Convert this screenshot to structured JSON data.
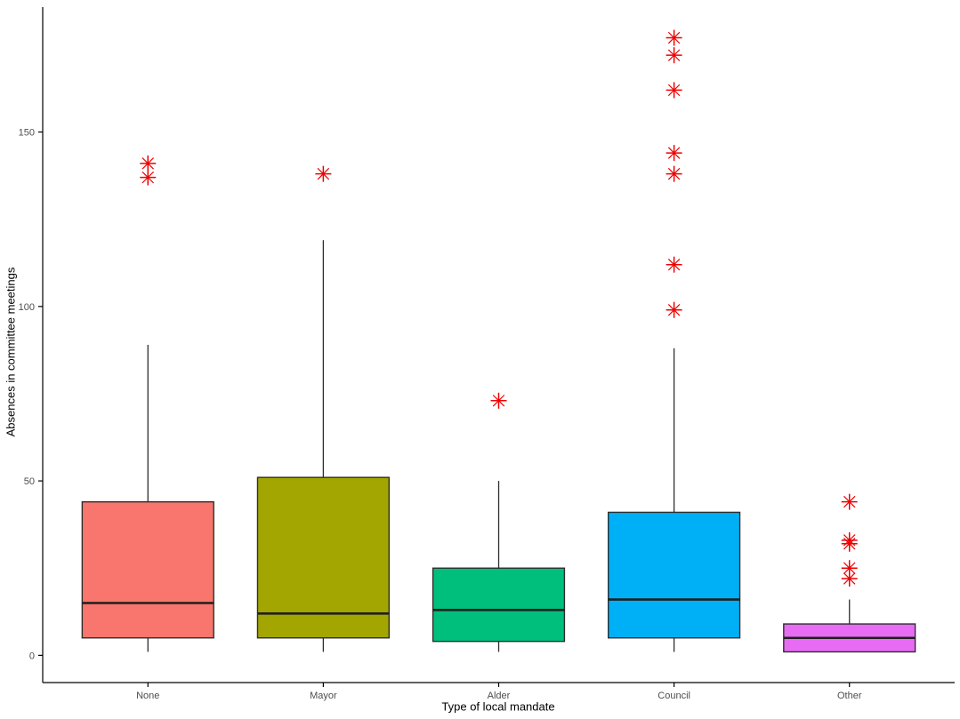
{
  "chart_data": {
    "type": "boxplot",
    "title": "",
    "xlabel": "Type of local mandate",
    "ylabel": "Absences in committee meetings",
    "categories": [
      "None",
      "Mayor",
      "Alder",
      "Council",
      "Other"
    ],
    "series": [
      {
        "name": "None",
        "fill": "#F8766D",
        "min": 1,
        "q1": 5,
        "median": 15,
        "q3": 44,
        "max": 89,
        "outliers": [
          137,
          141
        ]
      },
      {
        "name": "Mayor",
        "fill": "#A3A500",
        "min": 1,
        "q1": 5,
        "median": 12,
        "q3": 51,
        "max": 119,
        "outliers": [
          138
        ]
      },
      {
        "name": "Alder",
        "fill": "#00BF7D",
        "min": 1,
        "q1": 4,
        "median": 13,
        "q3": 25,
        "max": 50,
        "outliers": [
          73
        ]
      },
      {
        "name": "Council",
        "fill": "#00B0F6",
        "min": 1,
        "q1": 5,
        "median": 16,
        "q3": 41,
        "max": 88,
        "outliers": [
          99,
          112,
          138,
          144,
          162,
          172,
          177
        ]
      },
      {
        "name": "Other",
        "fill": "#E76BF3",
        "min": 1,
        "q1": 1,
        "median": 5,
        "q3": 9,
        "max": 16,
        "outliers": [
          22,
          25,
          32,
          33,
          44
        ]
      }
    ],
    "y_ticks": [
      0,
      50,
      100,
      150
    ],
    "y_domain": [
      -7.8,
      185.8
    ],
    "grid": false,
    "legend": "none",
    "outlier_marker": "asterisk",
    "outlier_color": "#EE0000",
    "axis_color": "#000000",
    "box_border_color": "#2e2e2e",
    "tick_label_color": "#4d4d4d",
    "box_width_fraction": 0.75
  }
}
